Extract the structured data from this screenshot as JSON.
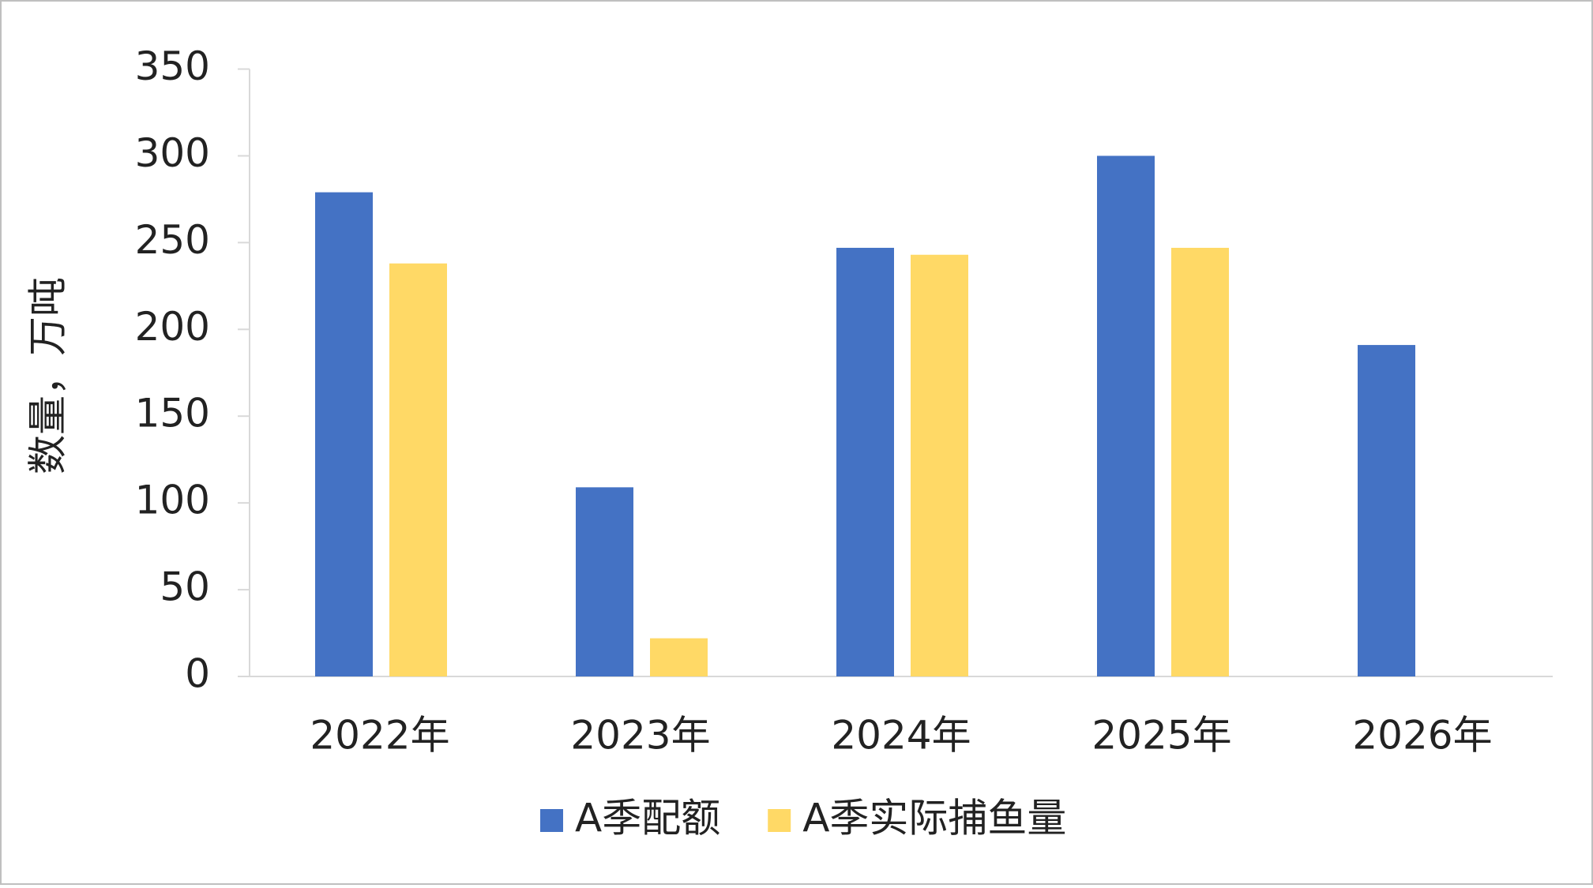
{
  "chart_data": {
    "type": "bar",
    "y_label": "数量，万吨",
    "categories": [
      "2022年",
      "2023年",
      "2024年",
      "2025年",
      "2026年"
    ],
    "series": [
      {
        "name": "A季配额",
        "color": "#4472c4",
        "values": [
          279,
          109,
          247,
          300,
          191
        ]
      },
      {
        "name": "A季实际捕鱼量",
        "color": "#ffd966",
        "values": [
          238,
          22,
          243,
          247,
          null
        ]
      }
    ],
    "ylim": [
      0,
      350
    ],
    "yticks": [
      0,
      50,
      100,
      150,
      200,
      250,
      300,
      350
    ],
    "grid": false
  }
}
